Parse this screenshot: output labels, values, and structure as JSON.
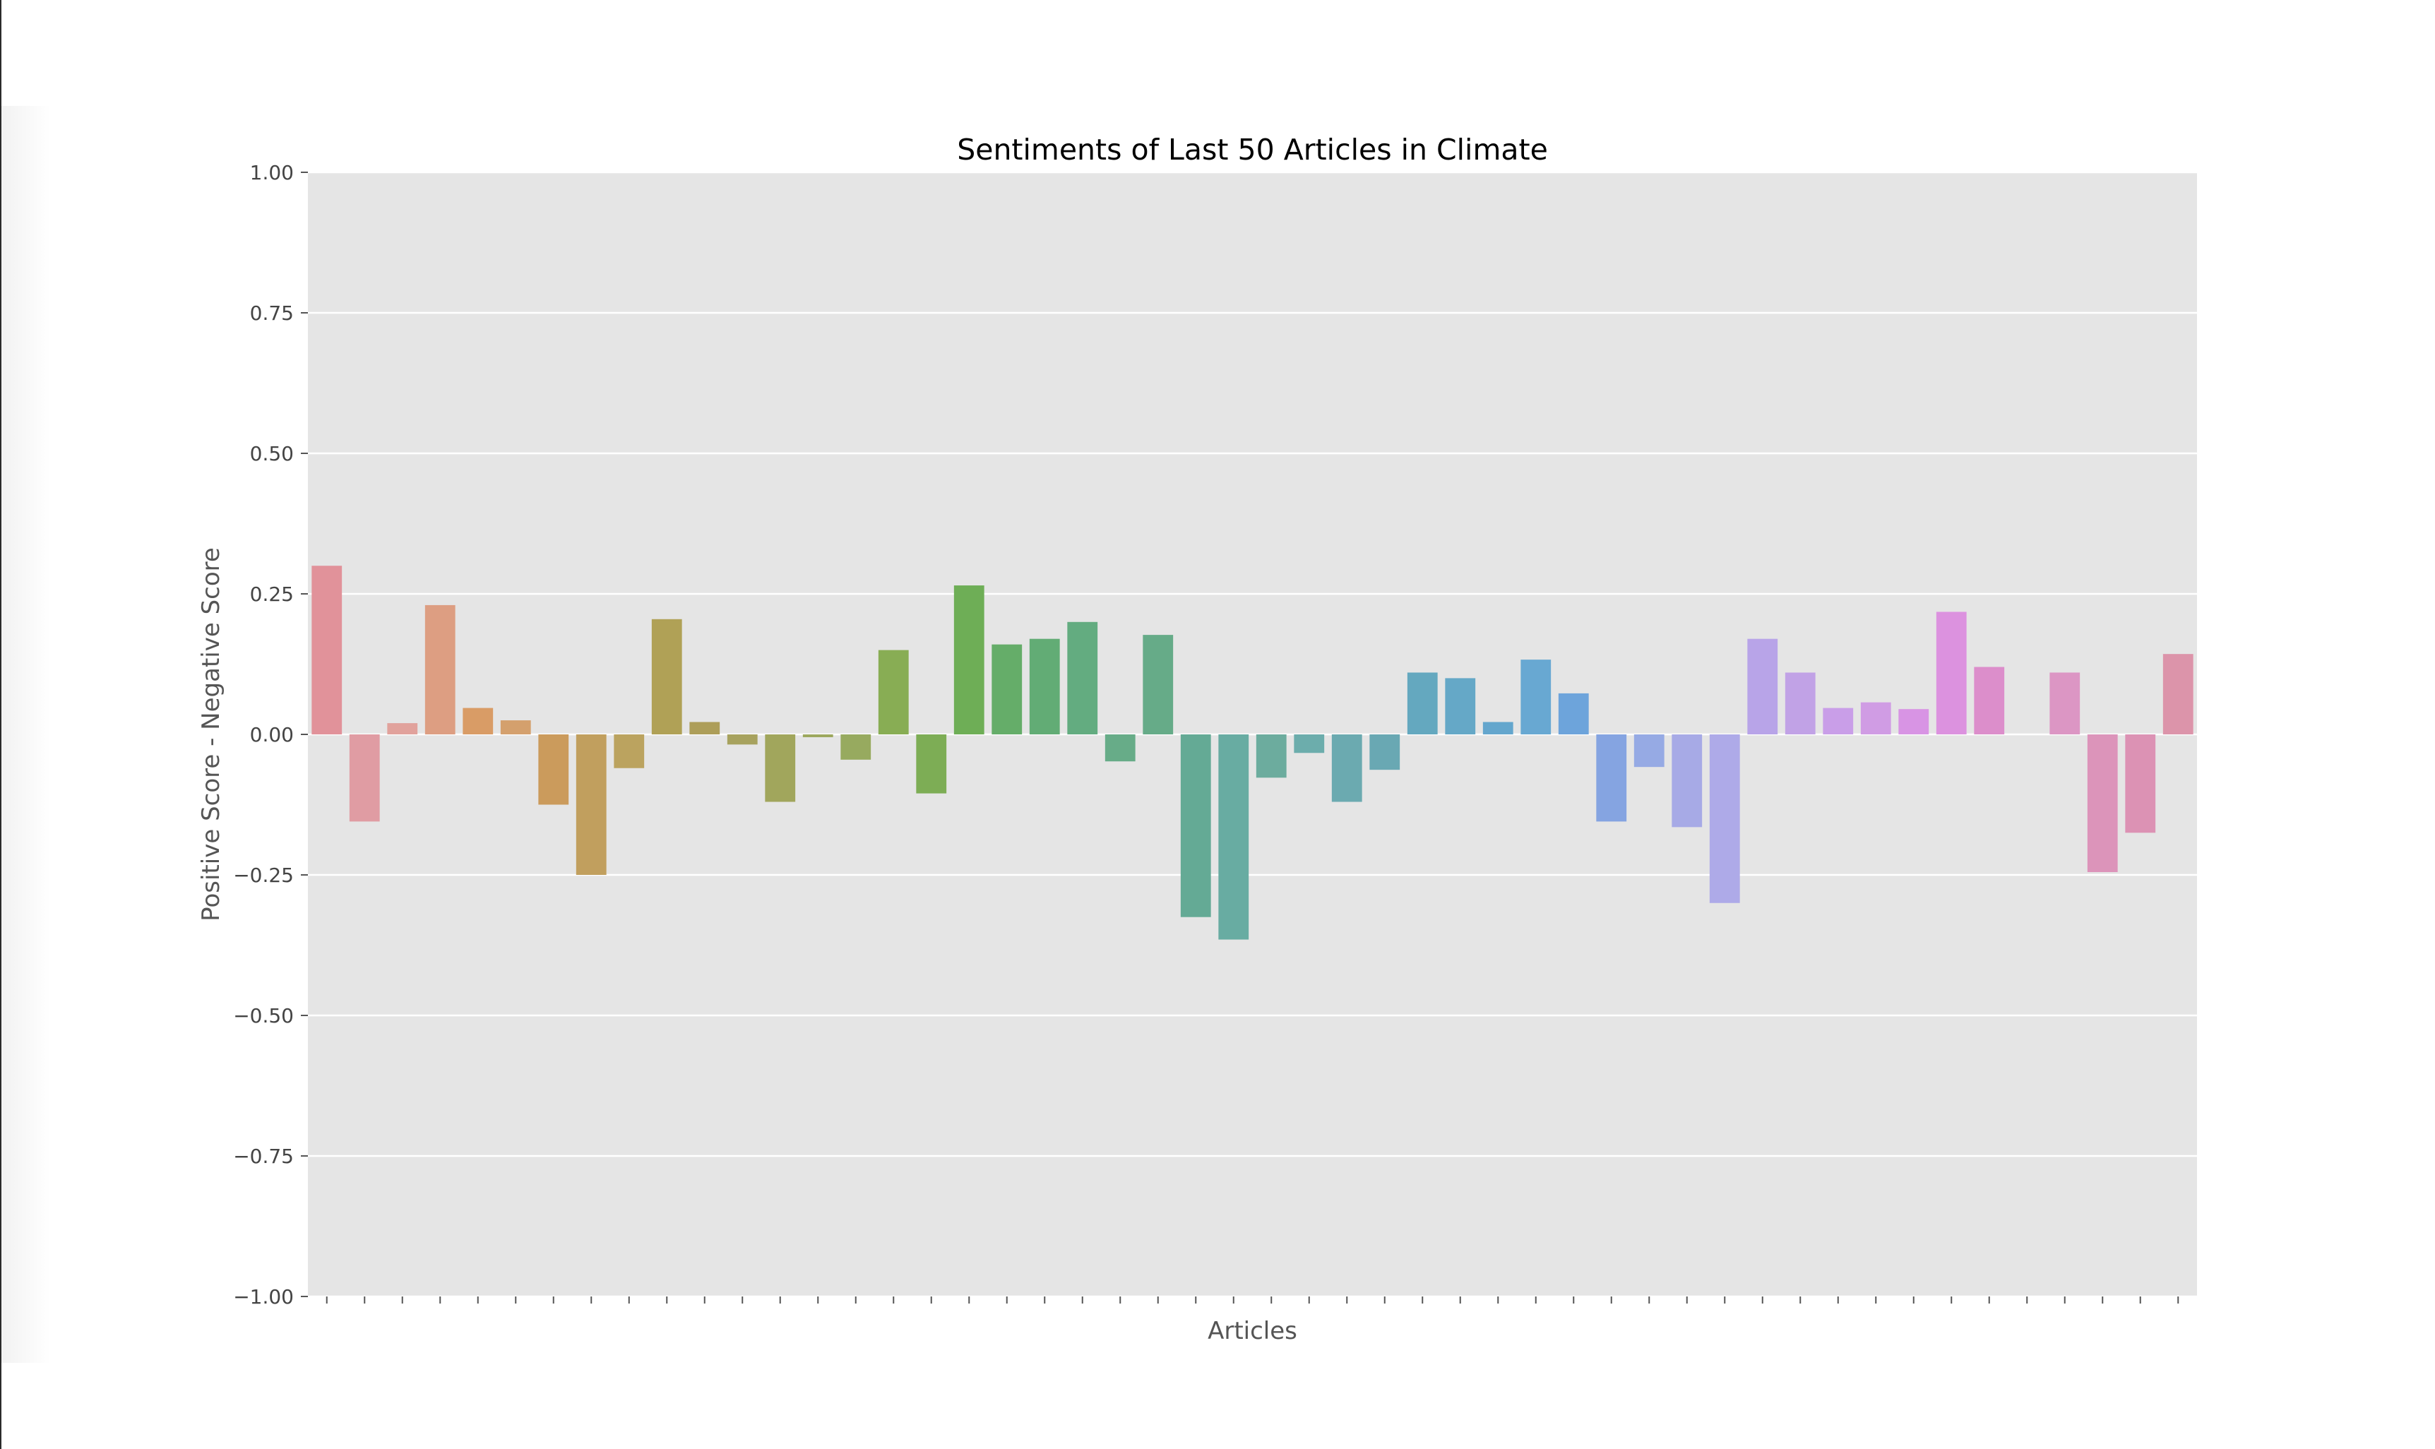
{
  "chart_data": {
    "type": "bar",
    "title": "Sentiments of Last 50 Articles in Climate",
    "xlabel": "Articles",
    "ylabel": "Positive Score - Negative Score",
    "ylim": [
      -1.0,
      1.0
    ],
    "yticks": [
      "1.00",
      "0.75",
      "0.50",
      "0.25",
      "0.00",
      "−0.25",
      "−0.50",
      "−0.75",
      "−1.00"
    ],
    "ytick_values": [
      1.0,
      0.75,
      0.5,
      0.25,
      0.0,
      -0.25,
      -0.5,
      -0.75,
      -1.0
    ],
    "grid": true,
    "background": "#e5e5e5",
    "values": [
      0.3,
      -0.155,
      0.02,
      0.23,
      0.047,
      0.025,
      -0.125,
      -0.25,
      -0.06,
      0.205,
      0.022,
      -0.018,
      -0.12,
      -0.005,
      -0.045,
      0.15,
      -0.105,
      0.265,
      0.16,
      0.17,
      0.2,
      -0.048,
      0.177,
      -0.325,
      -0.365,
      -0.077,
      -0.033,
      -0.12,
      -0.063,
      0.11,
      0.1,
      0.022,
      0.133,
      0.073,
      -0.155,
      -0.058,
      -0.165,
      -0.3,
      0.17,
      0.11,
      0.047,
      0.057,
      0.045,
      0.218,
      0.12,
      0.0,
      0.11,
      -0.245,
      -0.175,
      0.143
    ],
    "colors": [
      "#e1929a",
      "#e09ca3",
      "#e1a29c",
      "#dd9e82",
      "#d99c66",
      "#d4a06d",
      "#cb9b5c",
      "#c19f5e",
      "#bba35f",
      "#b0a156",
      "#ad9e59",
      "#a7a25e",
      "#a1a65c",
      "#9da85e",
      "#97aa5f",
      "#88ad54",
      "#7dad55",
      "#6eae56",
      "#65ad69",
      "#62ac75",
      "#63ac80",
      "#67ac88",
      "#66ab88",
      "#64aa95",
      "#68aca2",
      "#6cac9e",
      "#6cadac",
      "#6baab0",
      "#69a8b3",
      "#64a8bf",
      "#65a8c7",
      "#64a6cd",
      "#68a8d2",
      "#6da4db",
      "#85a4e1",
      "#96aae4",
      "#a7aae6",
      "#aeaae8",
      "#b8a4e8",
      "#c1a2e6",
      "#c99ee8",
      "#d09ce4",
      "#d894e4",
      "#dc92df",
      "#dc8ecb",
      "#dc96c8",
      "#dc96c4",
      "#dc94ba",
      "#dc92b4",
      "#dc94aa"
    ]
  }
}
